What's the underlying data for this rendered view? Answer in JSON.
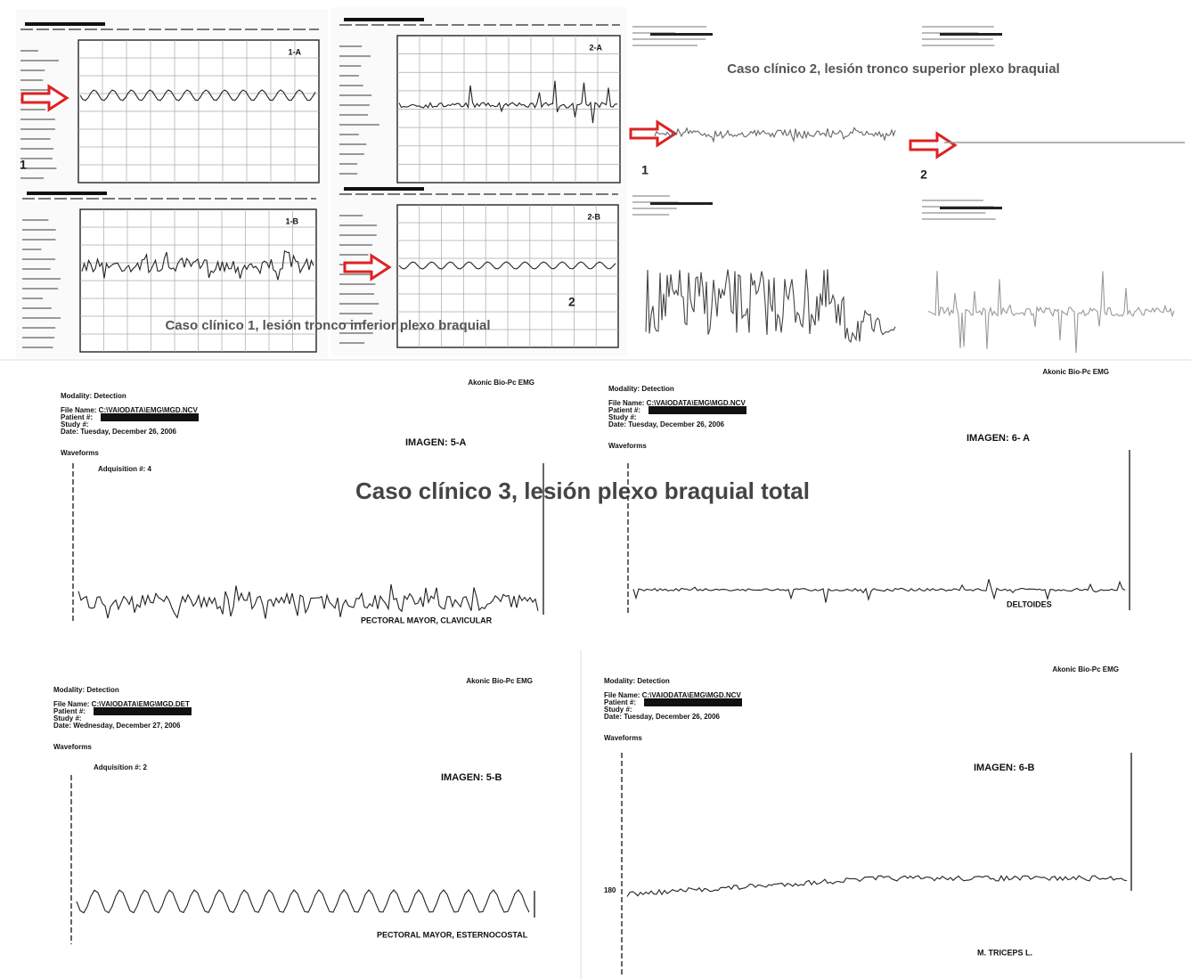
{
  "case1": {
    "caption": "Caso clínico 1, lesión tronco inferior plexo braquial",
    "charts": [
      {
        "label": "1-A"
      },
      {
        "label": "1-B"
      },
      {
        "label": "2-A"
      },
      {
        "label": "2-B"
      }
    ],
    "markers": [
      "1",
      "2"
    ]
  },
  "case2": {
    "caption": "Caso clínico 2, lesión tronco superior plexo braquial",
    "markers": [
      "1",
      "2"
    ]
  },
  "case3": {
    "caption": "Caso clínico 3, lesión plexo braquial total",
    "reports": [
      {
        "brand": "Akonic Bio-Pc EMG",
        "modality": "Modality: Detection",
        "file": "File Name: C:\\VAIODATA\\EMG\\MGD.NCV",
        "patient": "Patient #:",
        "study": "Study #:",
        "date": "Date: Tuesday, December 26, 2006",
        "waveforms": "Waveforms",
        "acquisition": "Adquisition #: 4",
        "image": "IMAGEN: 5-A",
        "muscle": "PECTORAL MAYOR, CLAVICULAR"
      },
      {
        "brand": "Akonic Bio-Pc EMG",
        "modality": "Modality: Detection",
        "file": "File Name: C:\\VAIODATA\\EMG\\MGD.NCV",
        "patient": "Patient #:",
        "study": "Study #:",
        "date": "Date: Tuesday, December 26, 2006",
        "waveforms": "Waveforms",
        "image": "IMAGEN: 6- A",
        "muscle": "DELTOIDES"
      },
      {
        "brand": "Akonic Bio-Pc EMG",
        "modality": "Modality: Detection",
        "file": "File Name: C:\\VAIODATA\\EMG\\MGD.DET",
        "patient": "Patient #:",
        "study": "Study #:",
        "date": "Date: Wednesday, December 27, 2006",
        "waveforms": "Waveforms",
        "acquisition": "Adquisition #: 2",
        "image": "IMAGEN: 5-B",
        "muscle": "PECTORAL MAYOR, ESTERNOCOSTAL"
      },
      {
        "brand": "Akonic Bio-Pc EMG",
        "modality": "Modality: Detection",
        "file": "File Name: C:\\VAIODATA\\EMG\\MGD.NCV",
        "patient": "Patient #:",
        "study": "Study #:",
        "date": "Date: Tuesday, December 26, 2006",
        "waveforms": "Waveforms",
        "image": "IMAGEN: 6-B",
        "muscle": "M. TRICEPS L.",
        "scale": "180"
      }
    ]
  }
}
